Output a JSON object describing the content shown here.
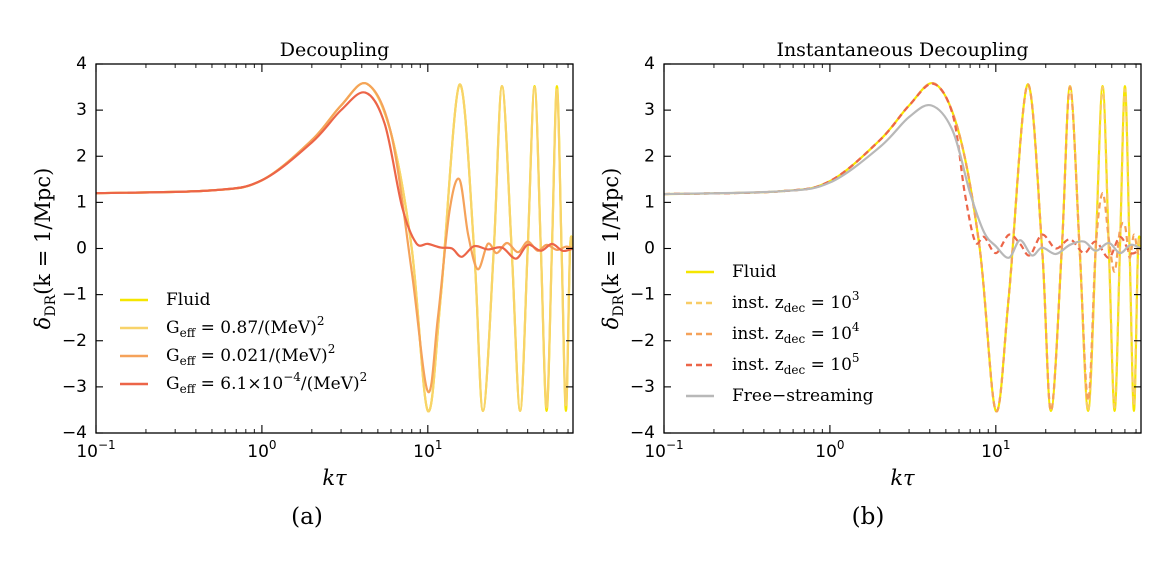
{
  "chart_data": [
    {
      "type": "line",
      "title": "Decoupling",
      "xlabel": "kτ",
      "ylabel": "δ_DR(k = 1/Mpc)",
      "xscale": "log",
      "xlim": [
        0.1,
        75
      ],
      "ylim": [
        -4,
        4
      ],
      "xticks": [
        {
          "value": 0.1,
          "base": "10",
          "exp": "−1"
        },
        {
          "value": 1,
          "base": "10",
          "exp": "0"
        },
        {
          "value": 10,
          "base": "10",
          "exp": "1"
        }
      ],
      "yticks": [
        -4,
        -3,
        -2,
        -1,
        0,
        1,
        2,
        3,
        4
      ],
      "grid": false,
      "legend_position": "lower-left",
      "panel_label": "(a)",
      "series": [
        {
          "name": "Fluid",
          "color": "#f5e600",
          "style": "solid",
          "x": [
            0.1,
            0.5,
            1,
            2,
            3,
            4.3,
            6,
            8,
            10,
            12,
            15.5,
            19,
            21.5,
            25,
            28,
            32,
            36,
            40,
            44,
            48,
            52,
            56,
            60,
            64,
            68,
            72,
            75
          ],
          "y": [
            1.2,
            1.26,
            1.48,
            2.35,
            3.1,
            3.57,
            2.5,
            0.0,
            -3.52,
            -1.0,
            3.55,
            0.0,
            -3.52,
            0.0,
            3.52,
            0.0,
            -3.52,
            0.0,
            3.52,
            0.0,
            -3.52,
            0.0,
            3.52,
            0.0,
            -3.52,
            0.0,
            0.0
          ]
        },
        {
          "name": "G_eff=0.87/(MeV)^2",
          "color": "#f8d36a",
          "style": "solid",
          "x": [
            0.1,
            0.5,
            1,
            2,
            3,
            4.3,
            6,
            8,
            10,
            12,
            15.5,
            19,
            21.5,
            25,
            28,
            32,
            36,
            40,
            44,
            48,
            52,
            56,
            60,
            64,
            68,
            72,
            75
          ],
          "y": [
            1.2,
            1.26,
            1.48,
            2.35,
            3.1,
            3.57,
            2.5,
            0.0,
            -3.52,
            -1.0,
            3.55,
            0.0,
            -3.52,
            0.0,
            3.52,
            0.0,
            -3.52,
            0.0,
            3.5,
            0.0,
            -3.45,
            0.0,
            3.45,
            0.0,
            -3.4,
            0.0,
            0.0
          ]
        },
        {
          "name": "G_eff=0.021/(MeV)^2",
          "color": "#f5a25a",
          "style": "solid",
          "x": [
            0.1,
            0.5,
            1,
            2,
            3,
            4.3,
            6,
            8,
            10,
            11.5,
            13.5,
            15.5,
            17.5,
            20,
            23,
            26,
            30,
            35,
            40,
            46,
            52,
            60,
            68,
            75
          ],
          "y": [
            1.2,
            1.26,
            1.48,
            2.35,
            3.1,
            3.57,
            2.5,
            -0.5,
            -3.1,
            -1.5,
            0.8,
            1.5,
            0.3,
            -0.45,
            0.1,
            -0.1,
            0.12,
            -0.08,
            0.15,
            -0.05,
            0.08,
            -0.03,
            0.04,
            0.0
          ]
        },
        {
          "name": "G_eff=6.1×10^-4/(MeV)^2",
          "color": "#ec6548",
          "style": "solid",
          "x": [
            0.1,
            0.5,
            1,
            2,
            3,
            4.2,
            5.5,
            7,
            8.5,
            10,
            12,
            14,
            16,
            19,
            23,
            28,
            34,
            40,
            48,
            56,
            65,
            75
          ],
          "y": [
            1.2,
            1.26,
            1.48,
            2.3,
            3.0,
            3.38,
            2.7,
            0.9,
            0.12,
            0.1,
            0.02,
            0.0,
            -0.18,
            0.05,
            -0.02,
            0.02,
            -0.22,
            0.08,
            -0.05,
            0.1,
            -0.05,
            0.0
          ]
        }
      ]
    },
    {
      "type": "line",
      "title": "Instantaneous Decoupling",
      "xlabel": "kτ",
      "ylabel": "δ_DR(k = 1/Mpc)",
      "xscale": "log",
      "xlim": [
        0.1,
        75
      ],
      "ylim": [
        -4,
        4
      ],
      "xticks": [
        {
          "value": 0.1,
          "base": "10",
          "exp": "−1"
        },
        {
          "value": 1,
          "base": "10",
          "exp": "0"
        },
        {
          "value": 10,
          "base": "10",
          "exp": "1"
        }
      ],
      "yticks": [
        -4,
        -3,
        -2,
        -1,
        0,
        1,
        2,
        3,
        4
      ],
      "grid": false,
      "legend_position": "lower-left",
      "panel_label": "(b)",
      "series": [
        {
          "name": "Fluid",
          "color": "#f5e600",
          "style": "solid",
          "x": [
            0.1,
            0.5,
            1,
            2,
            3,
            4.3,
            6,
            8,
            10,
            12,
            15.5,
            19,
            21.5,
            25,
            28,
            32,
            36,
            40,
            44,
            48,
            52,
            56,
            60,
            64,
            68,
            72,
            75
          ],
          "y": [
            1.18,
            1.24,
            1.46,
            2.35,
            3.1,
            3.57,
            2.5,
            0.0,
            -3.52,
            -1.0,
            3.55,
            0.0,
            -3.52,
            0.0,
            3.52,
            0.0,
            -3.52,
            0.0,
            3.52,
            0.0,
            -3.52,
            0.0,
            3.52,
            0.0,
            -3.52,
            0.0,
            0.0
          ]
        },
        {
          "name": "inst. z_dec=10^3",
          "color": "#f8cc66",
          "style": "dashed",
          "x": [
            0.1,
            0.5,
            1,
            2,
            3,
            4.3,
            6,
            8,
            10,
            12,
            15.5,
            19,
            21.5,
            25,
            28,
            32,
            36,
            40,
            44,
            48,
            52,
            56,
            60,
            64,
            68,
            72,
            75
          ],
          "y": [
            1.18,
            1.24,
            1.46,
            2.35,
            3.1,
            3.57,
            2.5,
            0.0,
            -3.52,
            -1.0,
            3.55,
            0.0,
            -3.52,
            0.0,
            3.52,
            0.0,
            -3.52,
            0.0,
            3.5,
            0.0,
            -3.45,
            0.0,
            3.45,
            0.0,
            -3.4,
            0.0,
            0.0
          ]
        },
        {
          "name": "inst. z_dec=10^4",
          "color": "#f5a25a",
          "style": "dashed",
          "x": [
            0.1,
            0.5,
            1,
            2,
            3,
            4.3,
            6,
            8,
            10,
            12,
            15.5,
            19,
            21.5,
            25,
            28,
            32,
            36,
            40,
            44,
            48,
            52,
            56,
            60,
            64,
            68,
            72,
            75
          ],
          "y": [
            1.18,
            1.24,
            1.46,
            2.35,
            3.1,
            3.57,
            2.5,
            0.0,
            -3.52,
            -1.0,
            3.55,
            0.0,
            -3.52,
            0.0,
            3.5,
            0.0,
            -3.3,
            0.0,
            1.2,
            0.2,
            -0.5,
            0.4,
            0.5,
            -0.2,
            0.3,
            -0.1,
            0.0
          ]
        },
        {
          "name": "inst. z_dec=10^5",
          "color": "#ec6548",
          "style": "dashed",
          "x": [
            0.1,
            0.5,
            1,
            2,
            3,
            4.2,
            5.5,
            6.5,
            7.5,
            8.5,
            10,
            12,
            14,
            16,
            19,
            23,
            28,
            34,
            40,
            48,
            56,
            65,
            75
          ],
          "y": [
            1.18,
            1.24,
            1.46,
            2.35,
            3.1,
            3.57,
            2.9,
            1.2,
            0.15,
            0.25,
            -0.1,
            0.3,
            0.1,
            -0.15,
            0.3,
            0.0,
            0.2,
            -0.1,
            0.15,
            -0.2,
            0.25,
            -0.1,
            0.0
          ]
        },
        {
          "name": "Free−streaming",
          "color": "#b8b8b8",
          "style": "solid",
          "x": [
            0.1,
            0.5,
            1,
            2,
            3,
            4.1,
            5.5,
            7,
            8.5,
            10,
            12,
            14,
            16.5,
            19,
            23,
            28,
            34,
            40,
            48,
            56,
            65,
            75
          ],
          "y": [
            1.18,
            1.24,
            1.43,
            2.2,
            2.85,
            3.1,
            2.55,
            1.2,
            0.35,
            0.05,
            -0.2,
            0.18,
            -0.15,
            0.02,
            -0.12,
            0.08,
            0.15,
            -0.05,
            0.12,
            -0.1,
            0.08,
            0.0
          ]
        }
      ]
    }
  ]
}
